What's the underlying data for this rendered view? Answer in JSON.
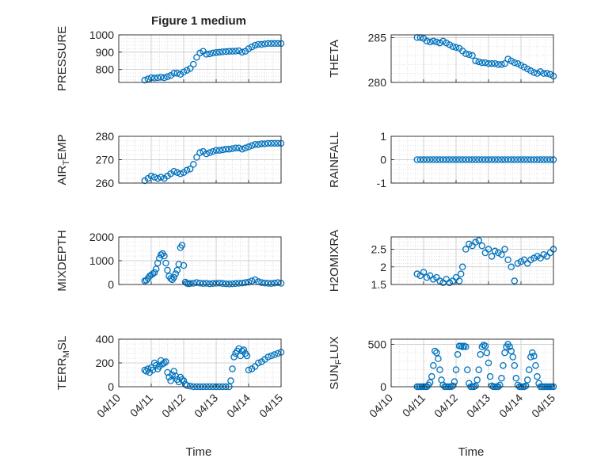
{
  "figure": {
    "title": "Figure 1 medium",
    "xlabel": "Time",
    "marker_color": "#0072BD",
    "grid_color": "#d9d9d9",
    "axis_color": "#262626"
  },
  "chart_data": [
    {
      "type": "scatter",
      "name": "PRESSURE",
      "title": "Figure 1 medium",
      "ylabel": "PRESSURE",
      "ylabel_parts": [
        "PRESSURE"
      ],
      "ylim": [
        725,
        1000
      ],
      "yticks": [
        800,
        900,
        1000
      ],
      "xlim": [
        0,
        5
      ],
      "xticks": [
        0,
        1,
        2,
        3,
        4,
        5
      ],
      "xticklabels": [
        "04/10",
        "04/11",
        "04/12",
        "04/13",
        "04/14",
        "04/15"
      ],
      "show_xticklabels": false,
      "x": [
        0.8,
        0.9,
        1.0,
        1.1,
        1.2,
        1.3,
        1.4,
        1.5,
        1.6,
        1.7,
        1.8,
        1.9,
        2.0,
        2.1,
        2.2,
        2.3,
        2.4,
        2.5,
        2.6,
        2.7,
        2.8,
        2.9,
        3.0,
        3.1,
        3.2,
        3.3,
        3.4,
        3.5,
        3.6,
        3.7,
        3.8,
        3.9,
        4.0,
        4.1,
        4.2,
        4.3,
        4.4,
        4.5,
        4.6,
        4.7,
        4.8,
        4.9,
        5.0
      ],
      "y": [
        738,
        745,
        752,
        750,
        752,
        755,
        752,
        758,
        765,
        778,
        778,
        772,
        785,
        795,
        805,
        830,
        870,
        895,
        905,
        888,
        890,
        895,
        898,
        900,
        902,
        903,
        905,
        905,
        906,
        908,
        900,
        905,
        920,
        930,
        940,
        945,
        945,
        948,
        950,
        950,
        950,
        950,
        950
      ]
    },
    {
      "type": "scatter",
      "name": "THETA",
      "ylabel": "THETA",
      "ylabel_parts": [
        "THETA"
      ],
      "ylim": [
        280,
        285.3
      ],
      "yticks": [
        280,
        285
      ],
      "xlim": [
        0,
        5
      ],
      "xticks": [
        0,
        1,
        2,
        3,
        4,
        5
      ],
      "xticklabels": [
        "04/10",
        "04/11",
        "04/12",
        "04/13",
        "04/14",
        "04/15"
      ],
      "show_xticklabels": false,
      "x": [
        0.8,
        0.9,
        1.0,
        1.1,
        1.2,
        1.3,
        1.4,
        1.5,
        1.6,
        1.7,
        1.8,
        1.9,
        2.0,
        2.1,
        2.2,
        2.3,
        2.4,
        2.5,
        2.6,
        2.7,
        2.8,
        2.9,
        3.0,
        3.1,
        3.2,
        3.3,
        3.4,
        3.5,
        3.6,
        3.7,
        3.8,
        3.9,
        4.0,
        4.1,
        4.2,
        4.3,
        4.4,
        4.5,
        4.6,
        4.7,
        4.8,
        4.9,
        5.0
      ],
      "y": [
        285,
        285,
        284.9,
        284.6,
        284.5,
        284.6,
        284.5,
        284.4,
        284.6,
        284.4,
        284.2,
        284,
        283.9,
        283.8,
        283.5,
        283.2,
        283.1,
        283,
        282.4,
        282.3,
        282.2,
        282.2,
        282.1,
        282.1,
        282.1,
        282,
        282,
        282.1,
        282.6,
        282.4,
        282.2,
        282.1,
        281.9,
        281.7,
        281.5,
        281.3,
        281.1,
        281,
        281.2,
        281,
        281,
        280.9,
        280.7
      ]
    },
    {
      "type": "scatter",
      "name": "AIR_TEMP",
      "ylabel": "AIR_TEMP",
      "ylabel_parts": [
        "AIR",
        "T",
        "EMP"
      ],
      "ylim": [
        260,
        280
      ],
      "yticks": [
        260,
        270,
        280
      ],
      "xlim": [
        0,
        5
      ],
      "xticks": [
        0,
        1,
        2,
        3,
        4,
        5
      ],
      "xticklabels": [
        "04/10",
        "04/11",
        "04/12",
        "04/13",
        "04/14",
        "04/15"
      ],
      "show_xticklabels": false,
      "x": [
        0.8,
        0.9,
        1.0,
        1.1,
        1.2,
        1.3,
        1.4,
        1.5,
        1.6,
        1.7,
        1.8,
        1.9,
        2.0,
        2.1,
        2.2,
        2.3,
        2.4,
        2.5,
        2.6,
        2.7,
        2.8,
        2.9,
        3.0,
        3.1,
        3.2,
        3.3,
        3.4,
        3.5,
        3.6,
        3.7,
        3.8,
        3.9,
        4.0,
        4.1,
        4.2,
        4.3,
        4.4,
        4.5,
        4.6,
        4.7,
        4.8,
        4.9,
        5.0
      ],
      "y": [
        261,
        262,
        263,
        262.5,
        262,
        262.5,
        262,
        263,
        264,
        265,
        264.5,
        264,
        264.5,
        265.5,
        266,
        268,
        271,
        273,
        273.5,
        272.5,
        273,
        273.5,
        274,
        274,
        274.2,
        274.5,
        274.5,
        274.7,
        275,
        275,
        274.5,
        275,
        275.5,
        276,
        276.5,
        276.5,
        276.8,
        276.8,
        277,
        277,
        277,
        277,
        277
      ]
    },
    {
      "type": "scatter",
      "name": "RAINFALL",
      "ylabel": "RAINFALL",
      "ylabel_parts": [
        "RAINFALL"
      ],
      "ylim": [
        -1,
        1
      ],
      "yticks": [
        -1,
        0,
        1
      ],
      "xlim": [
        0,
        5
      ],
      "xticks": [
        0,
        1,
        2,
        3,
        4,
        5
      ],
      "xticklabels": [
        "04/10",
        "04/11",
        "04/12",
        "04/13",
        "04/14",
        "04/15"
      ],
      "show_xticklabels": false,
      "x": [
        0.8,
        0.9,
        1.0,
        1.1,
        1.2,
        1.3,
        1.4,
        1.5,
        1.6,
        1.7,
        1.8,
        1.9,
        2.0,
        2.1,
        2.2,
        2.3,
        2.4,
        2.5,
        2.6,
        2.7,
        2.8,
        2.9,
        3.0,
        3.1,
        3.2,
        3.3,
        3.4,
        3.5,
        3.6,
        3.7,
        3.8,
        3.9,
        4.0,
        4.1,
        4.2,
        4.3,
        4.4,
        4.5,
        4.6,
        4.7,
        4.8,
        4.9,
        5.0
      ],
      "y": [
        0,
        0,
        0,
        0,
        0,
        0,
        0,
        0,
        0,
        0,
        0,
        0,
        0,
        0,
        0,
        0,
        0,
        0,
        0,
        0,
        0,
        0,
        0,
        0,
        0,
        0,
        0,
        0,
        0,
        0,
        0,
        0,
        0,
        0,
        0,
        0,
        0,
        0,
        0,
        0,
        0,
        0,
        0
      ]
    },
    {
      "type": "scatter",
      "name": "MIXDEPTH",
      "ylabel": "MIXDEPTH",
      "ylabel_parts": [
        "MIXDEPTH"
      ],
      "ylim": [
        0,
        2000
      ],
      "yticks": [
        0,
        1000,
        2000
      ],
      "xlim": [
        0,
        5
      ],
      "xticks": [
        0,
        1,
        2,
        3,
        4,
        5
      ],
      "xticklabels": [
        "04/10",
        "04/11",
        "04/12",
        "04/13",
        "04/14",
        "04/15"
      ],
      "show_xticklabels": false,
      "x": [
        0.8,
        0.85,
        0.9,
        0.95,
        1.0,
        1.05,
        1.1,
        1.15,
        1.2,
        1.25,
        1.3,
        1.35,
        1.4,
        1.45,
        1.5,
        1.55,
        1.6,
        1.65,
        1.7,
        1.75,
        1.8,
        1.85,
        1.9,
        1.95,
        2.0,
        2.05,
        2.1,
        2.15,
        2.2,
        2.3,
        2.4,
        2.5,
        2.6,
        2.7,
        2.8,
        2.9,
        3.0,
        3.1,
        3.2,
        3.3,
        3.4,
        3.5,
        3.6,
        3.7,
        3.8,
        3.9,
        4.0,
        4.1,
        4.2,
        4.3,
        4.4,
        4.5,
        4.6,
        4.7,
        4.8,
        4.9,
        5.0
      ],
      "y": [
        150,
        180,
        250,
        350,
        400,
        450,
        500,
        650,
        900,
        1100,
        1250,
        1300,
        1200,
        900,
        600,
        350,
        250,
        200,
        300,
        450,
        600,
        850,
        1550,
        1650,
        800,
        100,
        50,
        30,
        40,
        50,
        80,
        60,
        40,
        50,
        30,
        40,
        50,
        60,
        40,
        30,
        20,
        30,
        40,
        50,
        60,
        80,
        100,
        150,
        200,
        120,
        80,
        60,
        50,
        40,
        60,
        80,
        50
      ]
    },
    {
      "type": "scatter",
      "name": "H2OMIXRA",
      "ylabel": "H2OMIXRA",
      "ylabel_parts": [
        "H2OMIXRA"
      ],
      "ylim": [
        1.5,
        2.85
      ],
      "yticks": [
        1.5,
        2,
        2.5
      ],
      "xlim": [
        0,
        5
      ],
      "xticks": [
        0,
        1,
        2,
        3,
        4,
        5
      ],
      "xticklabels": [
        "04/10",
        "04/11",
        "04/12",
        "04/13",
        "04/14",
        "04/15"
      ],
      "show_xticklabels": false,
      "x": [
        0.8,
        0.9,
        1.0,
        1.1,
        1.2,
        1.3,
        1.4,
        1.5,
        1.6,
        1.7,
        1.8,
        1.9,
        2.0,
        2.1,
        2.15,
        2.2,
        2.3,
        2.4,
        2.5,
        2.6,
        2.7,
        2.8,
        2.9,
        3.0,
        3.1,
        3.2,
        3.3,
        3.4,
        3.5,
        3.6,
        3.7,
        3.8,
        3.9,
        4.0,
        4.1,
        4.2,
        4.3,
        4.4,
        4.5,
        4.6,
        4.7,
        4.8,
        4.9,
        5.0
      ],
      "y": [
        1.8,
        1.75,
        1.85,
        1.7,
        1.75,
        1.65,
        1.7,
        1.6,
        1.55,
        1.65,
        1.55,
        1.6,
        1.7,
        1.6,
        1.8,
        2.0,
        2.5,
        2.65,
        2.6,
        2.7,
        2.75,
        2.6,
        2.4,
        2.5,
        2.3,
        2.45,
        2.4,
        2.35,
        2.5,
        2.2,
        2.0,
        1.6,
        2.1,
        2.15,
        2.2,
        2.1,
        2.2,
        2.25,
        2.3,
        2.25,
        2.35,
        2.3,
        2.4,
        2.5
      ]
    },
    {
      "type": "scatter",
      "name": "TERR_MSL",
      "ylabel": "TERR_MSL",
      "ylabel_parts": [
        "TERR",
        "M",
        "SL"
      ],
      "ylim": [
        0,
        400
      ],
      "yticks": [
        0,
        200,
        400
      ],
      "xlim": [
        0,
        5
      ],
      "xticks": [
        0,
        1,
        2,
        3,
        4,
        5
      ],
      "xticklabels": [
        "04/10",
        "04/11",
        "04/12",
        "04/13",
        "04/14",
        "04/15"
      ],
      "show_xticklabels": true,
      "x": [
        0.8,
        0.85,
        0.9,
        0.95,
        1.0,
        1.05,
        1.1,
        1.15,
        1.2,
        1.25,
        1.3,
        1.35,
        1.4,
        1.45,
        1.5,
        1.55,
        1.6,
        1.65,
        1.7,
        1.75,
        1.8,
        1.85,
        1.9,
        1.95,
        2.0,
        2.05,
        2.1,
        2.2,
        2.3,
        2.4,
        2.5,
        2.6,
        2.7,
        2.8,
        2.9,
        3.0,
        3.1,
        3.2,
        3.3,
        3.4,
        3.45,
        3.5,
        3.55,
        3.6,
        3.65,
        3.7,
        3.75,
        3.8,
        3.85,
        3.9,
        3.95,
        4.0,
        4.1,
        4.2,
        4.3,
        4.4,
        4.5,
        4.6,
        4.7,
        4.8,
        4.9,
        5.0
      ],
      "y": [
        140,
        130,
        150,
        120,
        160,
        140,
        200,
        180,
        150,
        170,
        220,
        190,
        200,
        210,
        120,
        80,
        50,
        100,
        130,
        90,
        60,
        40,
        80,
        60,
        50,
        20,
        10,
        5,
        0,
        0,
        0,
        0,
        0,
        0,
        0,
        0,
        0,
        0,
        0,
        0,
        50,
        150,
        250,
        280,
        300,
        320,
        260,
        300,
        310,
        280,
        260,
        140,
        150,
        170,
        200,
        210,
        230,
        250,
        260,
        270,
        280,
        290
      ]
    },
    {
      "type": "scatter",
      "name": "SUN_FLUX",
      "ylabel": "SUN_FLUX",
      "ylabel_parts": [
        "SUN",
        "F",
        "LUX"
      ],
      "ylim": [
        0,
        560
      ],
      "yticks": [
        0,
        500
      ],
      "xlim": [
        0,
        5
      ],
      "xticks": [
        0,
        1,
        2,
        3,
        4,
        5
      ],
      "xticklabels": [
        "04/10",
        "04/11",
        "04/12",
        "04/13",
        "04/14",
        "04/15"
      ],
      "show_xticklabels": true,
      "x": [
        0.8,
        0.85,
        0.9,
        0.95,
        1.0,
        1.05,
        1.1,
        1.15,
        1.2,
        1.25,
        1.3,
        1.35,
        1.4,
        1.45,
        1.5,
        1.55,
        1.6,
        1.65,
        1.7,
        1.75,
        1.8,
        1.85,
        1.9,
        1.95,
        2.0,
        2.05,
        2.1,
        2.15,
        2.2,
        2.25,
        2.3,
        2.35,
        2.4,
        2.45,
        2.5,
        2.55,
        2.6,
        2.65,
        2.7,
        2.75,
        2.8,
        2.85,
        2.9,
        2.95,
        3.0,
        3.05,
        3.1,
        3.15,
        3.2,
        3.25,
        3.3,
        3.35,
        3.4,
        3.45,
        3.5,
        3.55,
        3.6,
        3.65,
        3.7,
        3.75,
        3.8,
        3.85,
        3.9,
        3.95,
        4.0,
        4.05,
        4.1,
        4.15,
        4.2,
        4.25,
        4.3,
        4.35,
        4.4,
        4.45,
        4.5,
        4.55,
        4.6,
        4.65,
        4.7,
        4.75,
        4.8,
        4.85,
        4.9,
        4.95,
        5.0
      ],
      "y": [
        0,
        0,
        0,
        0,
        0,
        0,
        0,
        20,
        50,
        120,
        250,
        420,
        400,
        330,
        200,
        80,
        20,
        0,
        0,
        0,
        0,
        0,
        10,
        60,
        200,
        380,
        480,
        480,
        470,
        480,
        470,
        200,
        40,
        0,
        0,
        0,
        10,
        80,
        200,
        380,
        470,
        490,
        480,
        400,
        280,
        120,
        10,
        0,
        0,
        0,
        0,
        20,
        100,
        250,
        400,
        470,
        500,
        470,
        420,
        350,
        250,
        100,
        20,
        0,
        0,
        0,
        0,
        10,
        80,
        200,
        350,
        400,
        360,
        250,
        120,
        40,
        0,
        0,
        0,
        0,
        0,
        0,
        0,
        0,
        0
      ]
    }
  ]
}
